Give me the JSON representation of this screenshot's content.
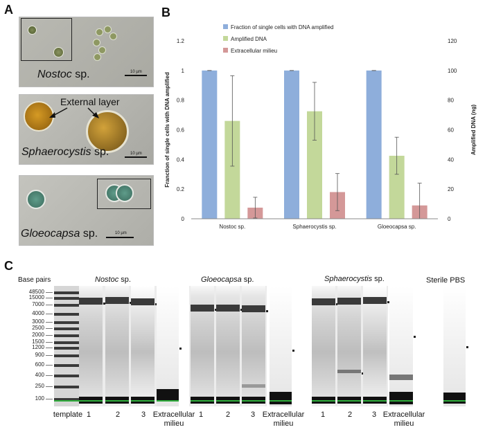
{
  "panels": {
    "a": "A",
    "b": "B",
    "c": "C"
  },
  "panel_a": {
    "images": [
      {
        "genus": "Nostoc",
        "suffix": " sp.",
        "scale": "10 µm"
      },
      {
        "genus": "Sphaerocystis",
        "suffix": " sp.",
        "scale": "10 µm",
        "annotation": "External layer"
      },
      {
        "genus": "Gloeocapsa",
        "suffix": " sp.",
        "scale": "10 µm"
      }
    ]
  },
  "chart_data": {
    "type": "bar",
    "categories": [
      "Nostoc sp.",
      "Sphaerocystis sp.",
      "Gloeocapsa sp."
    ],
    "series": [
      {
        "name": "Fraction of single cells with DNA amplified",
        "axis": "left",
        "color": "#8eaedb",
        "values": [
          1,
          1,
          1
        ],
        "errors": [
          0,
          0,
          0
        ]
      },
      {
        "name": "Amplified DNA",
        "axis": "right",
        "color": "#c3d89a",
        "values": [
          66,
          72.5,
          42.5
        ],
        "errors": [
          30.5,
          19.5,
          12.5
        ]
      },
      {
        "name": "Extracellular milieu",
        "axis": "right",
        "color": "#d49898",
        "values": [
          7.5,
          18,
          9
        ],
        "errors": [
          7,
          12.5,
          15
        ]
      }
    ],
    "ylabel": "Franction of single cells with DNA amplified",
    "y2label": "Amplified DNA (ng)",
    "ylim": [
      0,
      1.2
    ],
    "y2lim": [
      0,
      120
    ],
    "yticks": [
      "0",
      "0.2",
      "0.4",
      "0.6",
      "0.8",
      "1",
      "1.2"
    ],
    "y2ticks": [
      "0",
      "20",
      "40",
      "60",
      "80",
      "100",
      "120"
    ],
    "legend_position": "top-left"
  },
  "panel_c": {
    "base_pairs_label": "Base pairs",
    "bp_ladder": [
      "48500",
      "15000",
      "7000",
      "4000",
      "3000",
      "2500",
      "2000",
      "1500",
      "1200",
      "900",
      "600",
      "400",
      "250",
      "100"
    ],
    "groups": [
      {
        "genus": "Nostoc",
        "suffix": " sp."
      },
      {
        "genus": "Gloeocapsa",
        "suffix": " sp."
      },
      {
        "genus": "Sphaerocystis",
        "suffix": " sp."
      },
      {
        "genus": "",
        "suffix": "Sterile PBS"
      }
    ],
    "lane_labels": {
      "template": "template",
      "one": "1",
      "two": "2",
      "three": "3",
      "extra_line1": "Extracellular",
      "extra_line2": "milieu"
    }
  }
}
